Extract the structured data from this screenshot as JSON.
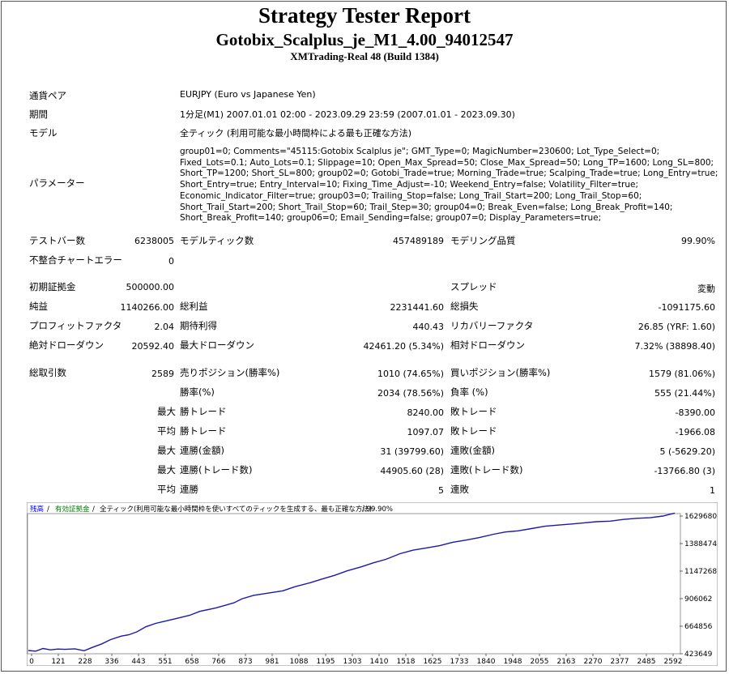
{
  "header": {
    "title": "Strategy Tester Report",
    "ea_name": "Gotobix_Scalplus_je_M1_4.00_94012547",
    "server": "XMTrading-Real 48 (Build 1384)"
  },
  "info": {
    "symbol_label": "通貨ペア",
    "symbol_value": "EURJPY (Euro vs Japanese Yen)",
    "period_label": "期間",
    "period_value": "1分足(M1) 2007.01.01 02:00 - 2023.09.29 23:59 (2007.01.01 - 2023.09.30)",
    "model_label": "モデル",
    "model_value": "全ティック (利用可能な最小時間枠による最も正確な方法)",
    "params_label": "パラメーター",
    "params_value": "group01=0; Comments=\"45115:Gotobix Scalplus je\"; GMT_Type=0; MagicNumber=230600; Lot_Type_Select=0; Fixed_Lots=0.1; Auto_Lots=0.1; Slippage=10; Open_Max_Spread=50; Close_Max_Spread=50; Long_TP=1600; Long_SL=800; Short_TP=1200; Short_SL=800; group02=0; Gotobi_Trade=true; Morning_Trade=true; Scalping_Trade=true; Long_Entry=true; Short_Entry=true; Entry_Interval=10; Fixing_Time_Adjust=-10; Weekend_Entry=false; Volatility_Filter=true; Economic_Indicator_Filter=true; group03=0; Trailing_Stop=false; Long_Trail_Start=200; Long_Trail_Stop=60; Short_Trail_Start=200; Short_Trail_Stop=60; Trail_Step=30; group04=0; Break_Even=false; Long_Break_Profit=140; Short_Break_Profit=140; group06=0; Email_Sending=false; group07=0; Display_Parameters=true;"
  },
  "stats": {
    "bars_label": "テストバー数",
    "bars_value": "6238005",
    "ticks_label": "モデルティック数",
    "ticks_value": "457489189",
    "quality_label": "モデリング品質",
    "quality_value": "99.90%",
    "mismatch_label": "不整合チャートエラー",
    "mismatch_value": "0",
    "deposit_label": "初期証拠金",
    "deposit_value": "500000.00",
    "spread_label": "スプレッド",
    "spread_value": "変動",
    "net_label": "純益",
    "net_value": "1140266.00",
    "gross_profit_label": "総利益",
    "gross_profit_value": "2231441.60",
    "gross_loss_label": "総損失",
    "gross_loss_value": "-1091175.60",
    "pf_label": "プロフィットファクタ",
    "pf_value": "2.04",
    "expected_label": "期待利得",
    "expected_value": "440.43",
    "recovery_label": "リカバリーファクタ",
    "recovery_value": "26.85 (YRF: 1.60)",
    "abs_dd_label": "絶対ドローダウン",
    "abs_dd_value": "20592.40",
    "max_dd_label": "最大ドローダウン",
    "max_dd_value": "42461.20 (5.34%)",
    "rel_dd_label": "相対ドローダウン",
    "rel_dd_value": "7.32% (38898.40)",
    "total_trades_label": "総取引数",
    "total_trades_value": "2589",
    "short_label": "売りポジション(勝率%)",
    "short_value": "1010 (74.65%)",
    "long_label": "買いポジション(勝率%)",
    "long_value": "1579 (81.06%)",
    "win_rate_label": "勝率(%)",
    "win_rate_value": "2034 (78.56%)",
    "loss_rate_label": "負率 (%)",
    "loss_rate_value": "555 (21.44%)",
    "max_label_1": "最大",
    "largest_win_label": "勝トレード",
    "largest_win_value": "8240.00",
    "largest_loss_label": "敗トレード",
    "largest_loss_value": "-8390.00",
    "avg_label_1": "平均",
    "avg_win_label": "勝トレード",
    "avg_win_value": "1097.07",
    "avg_loss_label": "敗トレード",
    "avg_loss_value": "-1966.08",
    "max_label_2": "最大",
    "max_cons_wins_label": "連勝(金額)",
    "max_cons_wins_value": "31 (39799.60)",
    "max_cons_losses_label": "連敗(金額)",
    "max_cons_losses_value": "5 (-5629.20)",
    "max_label_3": "最大",
    "max_cons_profit_label": "連勝(トレード数)",
    "max_cons_profit_value": "44905.60 (28)",
    "max_cons_loss_label": "連敗(トレード数)",
    "max_cons_loss_value": "-13766.80 (3)",
    "avg_label_2": "平均",
    "avg_cons_wins_label": "連勝",
    "avg_cons_wins_value": "5",
    "avg_cons_losses_label": "連敗",
    "avg_cons_losses_value": "1"
  },
  "chart_data": {
    "type": "line",
    "legend": {
      "balance": "残高",
      "sep1": " / ",
      "margin": "有効証拠金",
      "sep2": " / ",
      "model": "全ティック(利用可能な最小時間枠を使いすべてのティックを生成する、最も正確な方法)",
      "quality": " / 99.90%"
    },
    "colors": {
      "balance": "#0000ff",
      "margin": "#008000",
      "line": "#1a1aa6"
    },
    "x_ticks": [
      "0",
      "121",
      "228",
      "336",
      "443",
      "551",
      "658",
      "766",
      "873",
      "981",
      "1088",
      "1195",
      "1303",
      "1410",
      "1518",
      "1625",
      "1733",
      "1840",
      "1948",
      "2055",
      "2163",
      "2270",
      "2377",
      "2485",
      "2592"
    ],
    "y_ticks": [
      "1629680",
      "1388474",
      "1147268",
      "906062",
      "664856",
      "423649"
    ],
    "xlim": [
      0,
      2660
    ],
    "ylim": [
      423649,
      1629680
    ],
    "series": [
      {
        "x": [
          0,
          30,
          60,
          90,
          121,
          150,
          190,
          228,
          260,
          300,
          336,
          380,
          410,
          443,
          480,
          520,
          551,
          600,
          658,
          700,
          766,
          800,
          840,
          873,
          920,
          981,
          1040,
          1088,
          1150,
          1195,
          1250,
          1303,
          1360,
          1410,
          1460,
          1518,
          1570,
          1625,
          1680,
          1733,
          1790,
          1840,
          1900,
          1948,
          2000,
          2055,
          2110,
          2163,
          2220,
          2270,
          2320,
          2377,
          2430,
          2485,
          2540,
          2592,
          2640
        ],
        "y": [
          452000,
          446000,
          470000,
          458000,
          465000,
          462000,
          467000,
          450000,
          478000,
          510000,
          548000,
          578000,
          590000,
          615000,
          660000,
          690000,
          705000,
          730000,
          760000,
          795000,
          825000,
          845000,
          870000,
          905000,
          935000,
          955000,
          975000,
          1010000,
          1045000,
          1075000,
          1110000,
          1150000,
          1185000,
          1220000,
          1250000,
          1300000,
          1330000,
          1350000,
          1370000,
          1400000,
          1420000,
          1440000,
          1470000,
          1490000,
          1500000,
          1520000,
          1540000,
          1550000,
          1560000,
          1570000,
          1580000,
          1585000,
          1600000,
          1610000,
          1615000,
          1630000,
          1655000
        ]
      }
    ]
  }
}
